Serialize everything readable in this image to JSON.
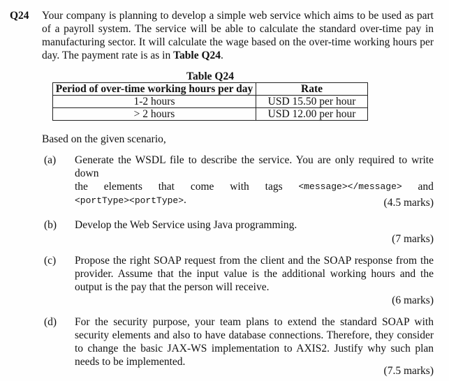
{
  "question": {
    "number": "Q24",
    "intro": "Your company is planning to develop a simple web service which aims to be used as part of a payroll system. The service will be able to calculate the standard over-time pay in manufacturing sector. It will calculate the wage based on the over-time working hours per day. The payment rate is as in ",
    "intro_ref": "Table Q24",
    "intro_end": "."
  },
  "table": {
    "title": "Table Q24",
    "headers": [
      "Period of over-time working hours per day",
      "Rate"
    ],
    "rows": [
      [
        "1-2 hours",
        "USD 15.50 per hour"
      ],
      [
        "> 2 hours",
        "USD 12.00 per hour"
      ]
    ]
  },
  "scenario": "Based on the given scenario,",
  "parts": [
    {
      "label": "(a)",
      "text1": "Generate the WSDL file to describe the service. You are only required to write down",
      "words": [
        "the",
        "elements",
        "that",
        "come",
        "with",
        "tags"
      ],
      "code1": "<message></message>",
      "and": "and",
      "code2": "<portType><portType>",
      "end": ".",
      "marks": "(4.5 marks)"
    },
    {
      "label": "(b)",
      "text": "Develop the Web Service using Java programming.",
      "marks": "(7 marks)"
    },
    {
      "label": "(c)",
      "text": "Propose the right SOAP request from the client and the SOAP response from the provider. Assume that the input value is the additional working hours and the output is the pay that the person will receive.",
      "marks": "(6 marks)"
    },
    {
      "label": "(d)",
      "text": "For the security purpose, your team plans to extend the standard SOAP with security elements and also to have database connections. Therefore, they consider to change the basic JAX-WS implementation to AXIS2. Justify why such plan needs to be implemented.",
      "marks": "(7.5 marks)"
    }
  ]
}
